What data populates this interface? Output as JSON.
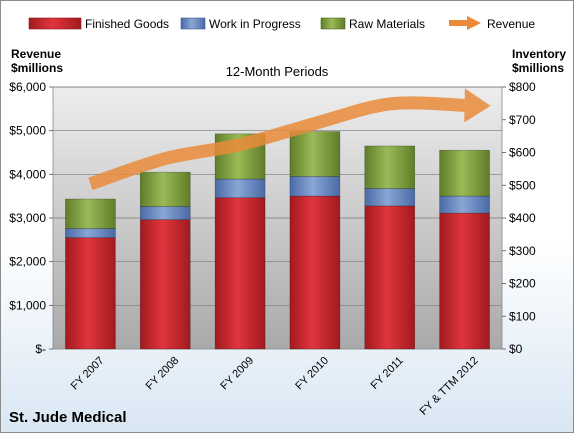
{
  "chart_data": {
    "type": "bar",
    "subtitle": "12-Month Periods",
    "company": "St. Jude Medical",
    "y_left_label_line1": "Revenue",
    "y_left_label_line2": "$millions",
    "y_right_label_line1": "Inventory",
    "y_right_label_line2": "$millions",
    "categories": [
      "FY 2007",
      "FY 2008",
      "FY 2009",
      "FY 2010",
      "FY 2011",
      "FY & TTM 2012"
    ],
    "series": [
      {
        "name": "Finished Goods",
        "axis": "right",
        "color": "#c0262c",
        "values": [
          340,
          395,
          462,
          467,
          437,
          415
        ]
      },
      {
        "name": "Work in Progress",
        "axis": "right",
        "color": "#5b7fbf",
        "values": [
          28,
          40,
          57,
          60,
          53,
          52
        ]
      },
      {
        "name": "Raw Materials",
        "axis": "right",
        "color": "#7a9a3a",
        "values": [
          90,
          105,
          138,
          137,
          130,
          140
        ]
      },
      {
        "name": "Revenue",
        "axis": "left",
        "color": "#e98b38",
        "values": [
          3780,
          4360,
          4680,
          5165,
          5612,
          5580
        ]
      }
    ],
    "ylim_left": [
      0,
      6000
    ],
    "yticks_left": [
      "$-",
      "$1,000",
      "$2,000",
      "$3,000",
      "$4,000",
      "$5,000",
      "$6,000"
    ],
    "ylim_right": [
      0,
      800
    ],
    "yticks_right": [
      "$0",
      "$100",
      "$200",
      "$300",
      "$400",
      "$500",
      "$600",
      "$700",
      "$800"
    ],
    "legend_position": "top",
    "grid": true
  }
}
